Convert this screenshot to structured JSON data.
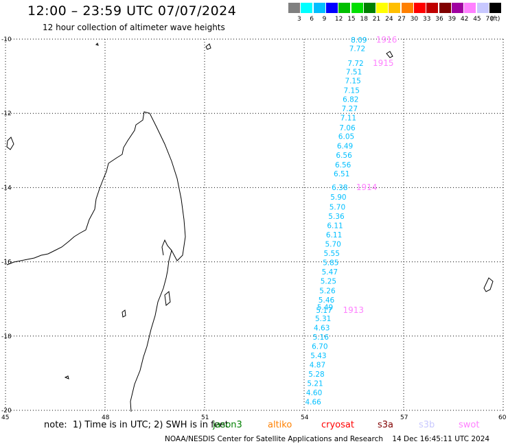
{
  "title": "12:00 – 23:59 UTC 07/07/2024",
  "subtitle": "12 hour collection of altimeter wave heights",
  "legend": {
    "colors": [
      "#808080",
      "#00ffff",
      "#00bfff",
      "#0000ff",
      "#00bf00",
      "#00df00",
      "#008000",
      "#ffff00",
      "#ffbf00",
      "#ff8000",
      "#ff0000",
      "#bf0000",
      "#800000",
      "#a000a0",
      "#ff80ff",
      "#c8c8ff",
      "#000000"
    ],
    "labels": [
      "3",
      "6",
      "9",
      "12",
      "15",
      "18",
      "21",
      "24",
      "27",
      "30",
      "33",
      "36",
      "39",
      "42",
      "45",
      "70",
      "(ft)"
    ]
  },
  "axes": {
    "lat_labels": [
      "-10",
      "-12",
      "-14",
      "-16",
      "-18",
      "-20"
    ],
    "lon_labels": [
      "45",
      "48",
      "51",
      "54",
      "57",
      "60"
    ]
  },
  "wave_heights": [
    {
      "value": "8.09",
      "lat": -10.02,
      "lon": 55.7
    },
    {
      "value": "7.72",
      "lat": -10.25,
      "lon": 55.65
    },
    {
      "value": "7.72",
      "lat": -10.65,
      "lon": 55.6
    },
    {
      "value": "7.51",
      "lat": -10.88,
      "lon": 55.55
    },
    {
      "value": "7.15",
      "lat": -11.12,
      "lon": 55.52
    },
    {
      "value": "7.15",
      "lat": -11.38,
      "lon": 55.48
    },
    {
      "value": "6.82",
      "lat": -11.62,
      "lon": 55.45
    },
    {
      "value": "7.27",
      "lat": -11.87,
      "lon": 55.42
    },
    {
      "value": "7.11",
      "lat": -12.12,
      "lon": 55.38
    },
    {
      "value": "7.06",
      "lat": -12.38,
      "lon": 55.35
    },
    {
      "value": "6.05",
      "lat": -12.62,
      "lon": 55.32
    },
    {
      "value": "6.49",
      "lat": -12.87,
      "lon": 55.28
    },
    {
      "value": "6.56",
      "lat": -13.12,
      "lon": 55.25
    },
    {
      "value": "6.56",
      "lat": -13.38,
      "lon": 55.22
    },
    {
      "value": "6.51",
      "lat": -13.62,
      "lon": 55.18
    },
    {
      "value": "6.38",
      "lat": -13.99,
      "lon": 55.12
    },
    {
      "value": "5.90",
      "lat": -14.25,
      "lon": 55.08
    },
    {
      "value": "5.70",
      "lat": -14.52,
      "lon": 55.05
    },
    {
      "value": "5.36",
      "lat": -14.77,
      "lon": 55.02
    },
    {
      "value": "6.11",
      "lat": -15.02,
      "lon": 54.98
    },
    {
      "value": "6.11",
      "lat": -15.27,
      "lon": 54.95
    },
    {
      "value": "5.70",
      "lat": -15.52,
      "lon": 54.92
    },
    {
      "value": "5.55",
      "lat": -15.77,
      "lon": 54.88
    },
    {
      "value": "5.85",
      "lat": -16.02,
      "lon": 54.85
    },
    {
      "value": "5.47",
      "lat": -16.27,
      "lon": 54.82
    },
    {
      "value": "5.25",
      "lat": -16.52,
      "lon": 54.78
    },
    {
      "value": "5.26",
      "lat": -16.77,
      "lon": 54.75
    },
    {
      "value": "5.46",
      "lat": -17.02,
      "lon": 54.72
    },
    {
      "value": "5.49",
      "lat": -17.22,
      "lon": 54.68
    },
    {
      "value": "5.17",
      "lat": -17.3,
      "lon": 54.65
    },
    {
      "value": "5.31",
      "lat": -17.52,
      "lon": 54.62
    },
    {
      "value": "4.63",
      "lat": -17.77,
      "lon": 54.58
    },
    {
      "value": "5.16",
      "lat": -18.02,
      "lon": 54.55
    },
    {
      "value": "6.70",
      "lat": -18.27,
      "lon": 54.52
    },
    {
      "value": "5.43",
      "lat": -18.52,
      "lon": 54.48
    },
    {
      "value": "4.87",
      "lat": -18.77,
      "lon": 54.45
    },
    {
      "value": "5.28",
      "lat": -19.02,
      "lon": 54.42
    },
    {
      "value": "5.21",
      "lat": -19.27,
      "lon": 54.38
    },
    {
      "value": "4.60",
      "lat": -19.52,
      "lon": 54.35
    },
    {
      "value": "4.66",
      "lat": -19.77,
      "lon": 54.32
    }
  ],
  "track_labels": [
    {
      "value": "1916",
      "lat": -10.02,
      "lon": 56.5
    },
    {
      "value": "1915",
      "lat": -10.65,
      "lon": 56.4
    },
    {
      "value": "1914",
      "lat": -13.99,
      "lon": 55.9
    },
    {
      "value": "1913",
      "lat": -17.3,
      "lon": 55.5
    }
  ],
  "footer": {
    "note": "note:  1) Time is in UTC; 2) SWH is in feet",
    "satellites": [
      {
        "name": "jason3",
        "color": "#008000"
      },
      {
        "name": "altiko",
        "color": "#ff8000"
      },
      {
        "name": "cryosat",
        "color": "#ff0000"
      },
      {
        "name": "s3a",
        "color": "#800000"
      },
      {
        "name": "s3b",
        "color": "#c8c8ff"
      },
      {
        "name": "swot",
        "color": "#ff80ff"
      }
    ],
    "credit": "NOAA/NESDIS Center for Satellite Applications and Research    14 Dec 16:45:11 UTC 2024"
  },
  "colors": {
    "wave_label": "#00bfff",
    "track_label": "#ff80ff",
    "grid": "#000000"
  }
}
